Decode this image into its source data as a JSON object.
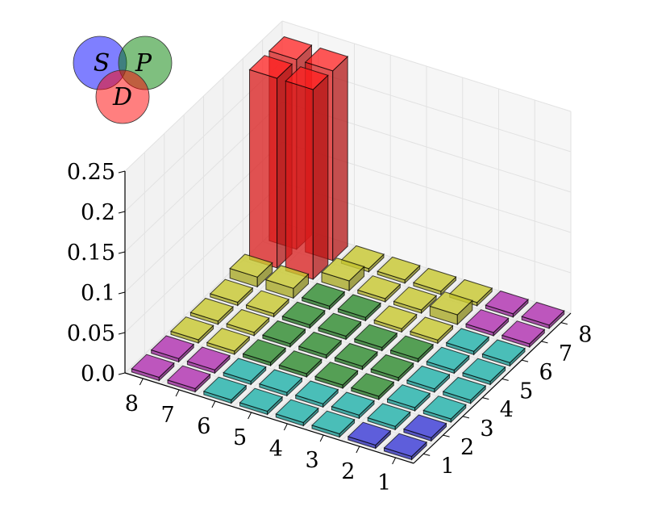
{
  "chart_data": {
    "type": "bar3d",
    "title": "",
    "xlabel": "",
    "ylabel": "",
    "zlabel": "",
    "x_ticks": [
      "1",
      "2",
      "3",
      "4",
      "5",
      "6",
      "7",
      "8"
    ],
    "y_ticks": [
      "1",
      "2",
      "3",
      "4",
      "5",
      "6",
      "7",
      "8"
    ],
    "z_ticks": [
      "0.0",
      "0.05",
      "0.1",
      "0.15",
      "0.2",
      "0.25"
    ],
    "zlim": [
      0,
      0.25
    ],
    "grid": true,
    "colors": {
      "S": "#3a3ad6",
      "P": "#2e8b2e",
      "D": "#ff2020",
      "SP": "#20b2aa",
      "SD": "#b02fb0",
      "PD": "#c8c830"
    },
    "bars": [
      {
        "x": 1,
        "y": 1,
        "z": 0.004,
        "group": "S"
      },
      {
        "x": 1,
        "y": 2,
        "z": 0.004,
        "group": "S"
      },
      {
        "x": 2,
        "y": 1,
        "z": 0.004,
        "group": "S"
      },
      {
        "x": 1,
        "y": 3,
        "z": 0.004,
        "group": "SP"
      },
      {
        "x": 1,
        "y": 4,
        "z": 0.004,
        "group": "SP"
      },
      {
        "x": 1,
        "y": 5,
        "z": 0.004,
        "group": "SP"
      },
      {
        "x": 1,
        "y": 6,
        "z": 0.004,
        "group": "SP"
      },
      {
        "x": 1,
        "y": 7,
        "z": 0.004,
        "group": "SD"
      },
      {
        "x": 1,
        "y": 8,
        "z": 0.004,
        "group": "SD"
      },
      {
        "x": 2,
        "y": 2,
        "z": 0.004,
        "group": "SP"
      },
      {
        "x": 2,
        "y": 3,
        "z": 0.004,
        "group": "SP"
      },
      {
        "x": 2,
        "y": 4,
        "z": 0.004,
        "group": "SP"
      },
      {
        "x": 2,
        "y": 5,
        "z": 0.004,
        "group": "SP"
      },
      {
        "x": 2,
        "y": 6,
        "z": 0.004,
        "group": "SP"
      },
      {
        "x": 2,
        "y": 7,
        "z": 0.004,
        "group": "SD"
      },
      {
        "x": 2,
        "y": 8,
        "z": 0.004,
        "group": "SD"
      },
      {
        "x": 3,
        "y": 1,
        "z": 0.004,
        "group": "SP"
      },
      {
        "x": 3,
        "y": 2,
        "z": 0.004,
        "group": "SP"
      },
      {
        "x": 3,
        "y": 3,
        "z": 0.004,
        "group": "P"
      },
      {
        "x": 3,
        "y": 4,
        "z": 0.004,
        "group": "P"
      },
      {
        "x": 3,
        "y": 5,
        "z": 0.004,
        "group": "P"
      },
      {
        "x": 3,
        "y": 6,
        "z": 0.004,
        "group": "PD"
      },
      {
        "x": 3,
        "y": 7,
        "z": 0.012,
        "group": "PD"
      },
      {
        "x": 3,
        "y": 8,
        "z": 0.004,
        "group": "PD"
      },
      {
        "x": 4,
        "y": 1,
        "z": 0.004,
        "group": "SP"
      },
      {
        "x": 4,
        "y": 2,
        "z": 0.004,
        "group": "SP"
      },
      {
        "x": 4,
        "y": 3,
        "z": 0.004,
        "group": "P"
      },
      {
        "x": 4,
        "y": 4,
        "z": 0.004,
        "group": "P"
      },
      {
        "x": 4,
        "y": 5,
        "z": 0.004,
        "group": "P"
      },
      {
        "x": 4,
        "y": 6,
        "z": 0.004,
        "group": "PD"
      },
      {
        "x": 4,
        "y": 7,
        "z": 0.004,
        "group": "PD"
      },
      {
        "x": 4,
        "y": 8,
        "z": 0.004,
        "group": "PD"
      },
      {
        "x": 5,
        "y": 1,
        "z": 0.004,
        "group": "SP"
      },
      {
        "x": 5,
        "y": 2,
        "z": 0.004,
        "group": "SP"
      },
      {
        "x": 5,
        "y": 3,
        "z": 0.004,
        "group": "P"
      },
      {
        "x": 5,
        "y": 4,
        "z": 0.004,
        "group": "P"
      },
      {
        "x": 5,
        "y": 5,
        "z": 0.004,
        "group": "P"
      },
      {
        "x": 5,
        "y": 6,
        "z": 0.004,
        "group": "P"
      },
      {
        "x": 5,
        "y": 7,
        "z": 0.004,
        "group": "PD"
      },
      {
        "x": 5,
        "y": 8,
        "z": 0.004,
        "group": "PD"
      },
      {
        "x": 6,
        "y": 1,
        "z": 0.004,
        "group": "SP"
      },
      {
        "x": 6,
        "y": 2,
        "z": 0.004,
        "group": "SP"
      },
      {
        "x": 6,
        "y": 3,
        "z": 0.004,
        "group": "P"
      },
      {
        "x": 6,
        "y": 4,
        "z": 0.004,
        "group": "P"
      },
      {
        "x": 6,
        "y": 5,
        "z": 0.004,
        "group": "P"
      },
      {
        "x": 6,
        "y": 6,
        "z": 0.004,
        "group": "P"
      },
      {
        "x": 6,
        "y": 7,
        "z": 0.012,
        "group": "PD"
      },
      {
        "x": 6,
        "y": 8,
        "z": 0.004,
        "group": "PD"
      },
      {
        "x": 7,
        "y": 1,
        "z": 0.004,
        "group": "SD"
      },
      {
        "x": 7,
        "y": 2,
        "z": 0.004,
        "group": "SD"
      },
      {
        "x": 7,
        "y": 3,
        "z": 0.004,
        "group": "PD"
      },
      {
        "x": 7,
        "y": 4,
        "z": 0.004,
        "group": "PD"
      },
      {
        "x": 7,
        "y": 5,
        "z": 0.004,
        "group": "PD"
      },
      {
        "x": 7,
        "y": 6,
        "z": 0.012,
        "group": "PD"
      },
      {
        "x": 7,
        "y": 7,
        "z": 0.235,
        "group": "D"
      },
      {
        "x": 7,
        "y": 8,
        "z": 0.235,
        "group": "D"
      },
      {
        "x": 8,
        "y": 1,
        "z": 0.004,
        "group": "SD"
      },
      {
        "x": 8,
        "y": 2,
        "z": 0.004,
        "group": "SD"
      },
      {
        "x": 8,
        "y": 3,
        "z": 0.004,
        "group": "PD"
      },
      {
        "x": 8,
        "y": 4,
        "z": 0.004,
        "group": "PD"
      },
      {
        "x": 8,
        "y": 5,
        "z": 0.004,
        "group": "PD"
      },
      {
        "x": 8,
        "y": 6,
        "z": 0.012,
        "group": "PD"
      },
      {
        "x": 8,
        "y": 7,
        "z": 0.235,
        "group": "D"
      },
      {
        "x": 8,
        "y": 8,
        "z": 0.235,
        "group": "D"
      }
    ],
    "venn": {
      "circles": [
        {
          "label": "S",
          "color": "#0000ff"
        },
        {
          "label": "P",
          "color": "#008000"
        },
        {
          "label": "D",
          "color": "#ff0000"
        }
      ]
    }
  }
}
